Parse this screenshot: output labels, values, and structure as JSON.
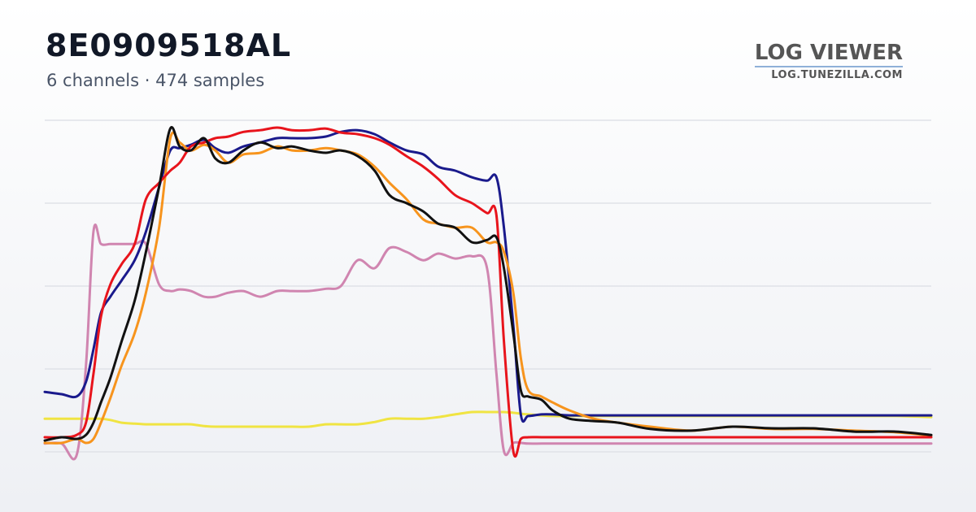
{
  "header": {
    "title": "8E0909518AL",
    "subtitle": "6 channels · 474 samples",
    "brand": "LOG VIEWER",
    "site": "LOG.TUNEZILLA.COM"
  },
  "chart_data": {
    "type": "line",
    "x": [
      0,
      9,
      17,
      22,
      26,
      30,
      35,
      41,
      48,
      54,
      61,
      67,
      72,
      78,
      85,
      91,
      98,
      106,
      115,
      124,
      132,
      141,
      150,
      158,
      167,
      176,
      184,
      193,
      202,
      210,
      219,
      228,
      236,
      241,
      245,
      250,
      254,
      258,
      265,
      271,
      280,
      293,
      306,
      323,
      345,
      367,
      388,
      410,
      432,
      454,
      473
    ],
    "xlim": [
      0,
      473
    ],
    "ylim": [
      0,
      100
    ],
    "yticks": [
      0,
      25,
      50,
      75,
      100
    ],
    "grid": true,
    "series": [
      {
        "color": "#f0e442",
        "values": [
          10.0,
          10.0,
          10.0,
          10.0,
          10.0,
          10.0,
          9.6,
          8.8,
          8.5,
          8.3,
          8.3,
          8.3,
          8.3,
          8.3,
          7.8,
          7.6,
          7.6,
          7.6,
          7.6,
          7.6,
          7.6,
          7.6,
          8.3,
          8.3,
          8.3,
          9.0,
          10.0,
          10.0,
          10.0,
          10.5,
          11.3,
          12.0,
          12.0,
          12.0,
          12.0,
          11.8,
          11.5,
          11.3,
          11.0,
          10.8,
          10.8,
          10.8,
          10.8,
          10.8,
          10.8,
          10.8,
          10.8,
          10.8,
          10.8,
          10.8,
          10.5
        ]
      },
      {
        "color": "#d085b0",
        "values": [
          2.5,
          2.5,
          -1.0,
          26.0,
          66.4,
          62.7,
          62.7,
          62.7,
          62.7,
          62.7,
          50.5,
          48.5,
          49.0,
          48.5,
          46.8,
          46.8,
          48.0,
          48.5,
          46.8,
          48.5,
          48.5,
          48.5,
          49.2,
          50.0,
          57.8,
          55.4,
          61.5,
          60.3,
          57.8,
          59.8,
          58.3,
          59.0,
          55.4,
          23.5,
          0.2,
          2.7,
          2.7,
          2.5,
          2.5,
          2.5,
          2.5,
          2.5,
          2.5,
          2.5,
          2.5,
          2.5,
          2.5,
          2.5,
          2.5,
          2.5,
          2.5
        ]
      },
      {
        "color": "#1a1a8c",
        "values": [
          18.1,
          17.4,
          16.7,
          21.1,
          30.9,
          41.9,
          46.8,
          51.7,
          57.8,
          66.4,
          79.9,
          90.9,
          91.6,
          92.6,
          94.1,
          91.6,
          90.2,
          92.1,
          93.3,
          94.6,
          94.6,
          94.6,
          95.1,
          96.5,
          97.0,
          95.8,
          93.3,
          90.9,
          89.7,
          86.0,
          84.8,
          82.8,
          81.8,
          82.8,
          67.6,
          38.2,
          11.3,
          10.8,
          11.3,
          11.3,
          11.0,
          11.0,
          11.0,
          11.0,
          11.0,
          11.0,
          11.0,
          11.0,
          11.0,
          11.0,
          11.0
        ]
      },
      {
        "color": "#f7941d",
        "values": [
          2.7,
          2.7,
          3.9,
          2.7,
          3.9,
          8.8,
          16.2,
          26.0,
          35.8,
          48.0,
          67.6,
          94.6,
          93.3,
          90.9,
          92.6,
          90.9,
          87.2,
          89.7,
          90.2,
          92.1,
          90.9,
          90.9,
          91.6,
          90.9,
          89.7,
          86.0,
          81.1,
          76.2,
          70.1,
          68.8,
          67.6,
          67.6,
          63.2,
          63.2,
          60.3,
          48.0,
          28.4,
          18.6,
          16.7,
          14.9,
          12.5,
          10.0,
          8.8,
          7.6,
          6.4,
          7.6,
          6.9,
          6.9,
          6.4,
          5.9,
          4.9
        ]
      },
      {
        "color": "#e8141c",
        "values": [
          4.4,
          4.4,
          5.1,
          8.8,
          23.5,
          40.7,
          50.5,
          56.6,
          62.7,
          76.2,
          81.1,
          84.8,
          87.2,
          92.1,
          93.3,
          94.6,
          95.1,
          96.5,
          97.0,
          97.8,
          97.0,
          97.0,
          97.5,
          96.3,
          95.8,
          94.6,
          92.6,
          89.2,
          86.0,
          82.3,
          77.4,
          75.0,
          72.0,
          71.3,
          33.3,
          0.2,
          3.9,
          4.4,
          4.4,
          4.4,
          4.4,
          4.4,
          4.4,
          4.4,
          4.4,
          4.4,
          4.4,
          4.4,
          4.4,
          4.4,
          4.4
        ]
      },
      {
        "color": "#111111",
        "values": [
          3.4,
          4.4,
          3.9,
          5.1,
          8.8,
          14.9,
          22.3,
          33.3,
          45.6,
          60.3,
          79.9,
          97.5,
          92.1,
          90.9,
          94.6,
          88.5,
          87.2,
          90.9,
          93.3,
          91.6,
          92.1,
          90.9,
          90.2,
          90.9,
          89.2,
          84.8,
          77.4,
          75.0,
          72.5,
          68.8,
          67.6,
          63.2,
          63.9,
          64.7,
          55.4,
          35.8,
          18.6,
          16.7,
          15.7,
          12.5,
          10.0,
          9.3,
          8.8,
          6.9,
          6.4,
          7.6,
          7.1,
          7.1,
          6.1,
          6.1,
          5.1
        ]
      }
    ]
  }
}
